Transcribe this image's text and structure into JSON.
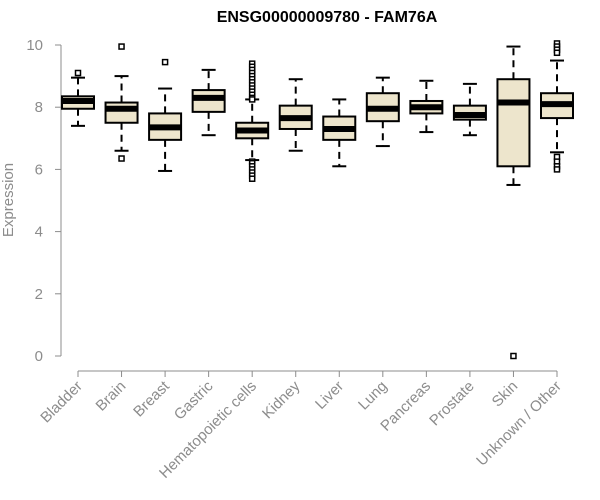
{
  "chart_data": {
    "type": "boxplot",
    "title": "ENSG00000009780 - FAM76A",
    "xlabel": "",
    "ylabel": "Expression",
    "ylim": [
      0,
      10
    ],
    "yticks": [
      0,
      2,
      4,
      6,
      8,
      10
    ],
    "colors": {
      "box_fill": "#ede5cc",
      "box_stroke": "#000000",
      "axis": "#8c8c8c",
      "title": "#000000"
    },
    "categories": [
      {
        "name": "Bladder",
        "whisker_low": 7.4,
        "q1": 7.95,
        "median": 8.2,
        "q3": 8.35,
        "whisker_high": 8.95,
        "outliers": [
          9.1
        ]
      },
      {
        "name": "Brain",
        "whisker_low": 6.6,
        "q1": 7.5,
        "median": 7.95,
        "q3": 8.15,
        "whisker_high": 9.0,
        "outliers": [
          9.95,
          6.35
        ]
      },
      {
        "name": "Breast",
        "whisker_low": 5.95,
        "q1": 6.95,
        "median": 7.35,
        "q3": 7.8,
        "whisker_high": 8.6,
        "outliers": [
          9.45
        ]
      },
      {
        "name": "Gastric",
        "whisker_low": 7.1,
        "q1": 7.85,
        "median": 8.3,
        "q3": 8.55,
        "whisker_high": 9.2,
        "outliers": []
      },
      {
        "name": "Hematopoietic cells",
        "whisker_low": 6.3,
        "q1": 7.0,
        "median": 7.25,
        "q3": 7.5,
        "whisker_high": 8.25,
        "outliers": [
          9.4,
          9.3,
          9.2,
          9.1,
          9.0,
          8.9,
          8.8,
          8.7,
          8.6,
          8.5,
          8.4,
          8.3,
          8.25,
          6.25,
          6.2,
          6.1,
          6.0,
          5.9,
          5.8,
          5.7
        ]
      },
      {
        "name": "Kidney",
        "whisker_low": 6.6,
        "q1": 7.3,
        "median": 7.65,
        "q3": 8.05,
        "whisker_high": 8.9,
        "outliers": []
      },
      {
        "name": "Liver",
        "whisker_low": 6.1,
        "q1": 6.95,
        "median": 7.3,
        "q3": 7.7,
        "whisker_high": 8.25,
        "outliers": []
      },
      {
        "name": "Lung",
        "whisker_low": 6.75,
        "q1": 7.55,
        "median": 7.95,
        "q3": 8.45,
        "whisker_high": 8.95,
        "outliers": []
      },
      {
        "name": "Pancreas",
        "whisker_low": 7.2,
        "q1": 7.8,
        "median": 8.0,
        "q3": 8.2,
        "whisker_high": 8.85,
        "outliers": []
      },
      {
        "name": "Prostate",
        "whisker_low": 7.1,
        "q1": 7.6,
        "median": 7.75,
        "q3": 8.05,
        "whisker_high": 8.75,
        "outliers": []
      },
      {
        "name": "Skin",
        "whisker_low": 5.5,
        "q1": 6.1,
        "median": 8.15,
        "q3": 8.9,
        "whisker_high": 9.95,
        "outliers": [
          0.0
        ]
      },
      {
        "name": "Unknown / Other",
        "whisker_low": 6.55,
        "q1": 7.65,
        "median": 8.1,
        "q3": 8.45,
        "whisker_high": 9.5,
        "outliers": [
          10.05,
          9.95,
          9.85,
          9.75,
          6.4,
          6.25,
          6.1,
          6.0
        ]
      }
    ]
  }
}
